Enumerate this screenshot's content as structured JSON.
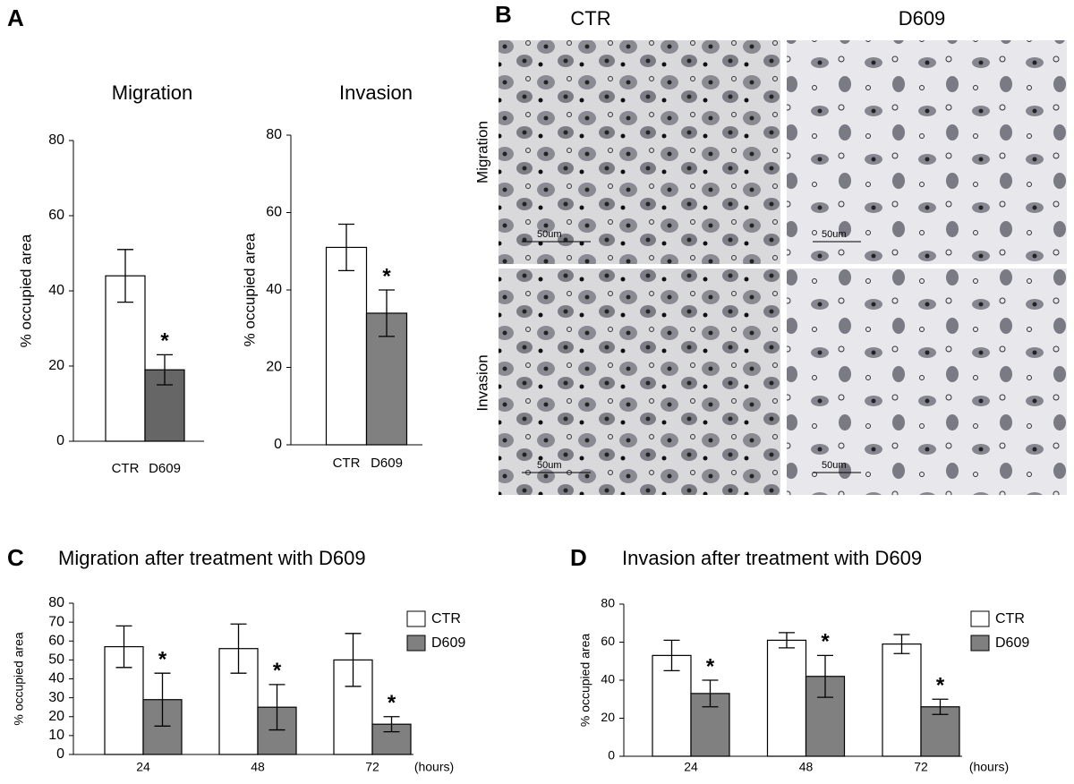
{
  "panel_letters": [
    "A",
    "B",
    "C",
    "D"
  ],
  "micrographs": {
    "columns": [
      "CTR",
      "D609"
    ],
    "rows": [
      "Migration",
      "Invasion"
    ],
    "scale_bar": "50um"
  },
  "chart_data": [
    {
      "type": "bar",
      "title": "Migration",
      "y_label": "% occupied area",
      "categories": [
        "CTR",
        "D609"
      ],
      "values": [
        44,
        19
      ],
      "errors": [
        7,
        4
      ],
      "colors": [
        "#ffffff",
        "#666666"
      ],
      "asterisks": [
        null,
        "*"
      ],
      "ylim": [
        0,
        80
      ],
      "yticks": [
        0,
        20,
        40,
        60,
        80
      ]
    },
    {
      "type": "bar",
      "title": "Invasion",
      "y_label": "% occupied area",
      "categories": [
        "CTR",
        "D609"
      ],
      "values": [
        51,
        34
      ],
      "errors": [
        6,
        6
      ],
      "colors": [
        "#ffffff",
        "#808080"
      ],
      "asterisks": [
        null,
        "*"
      ],
      "ylim": [
        0,
        80
      ],
      "yticks": [
        0,
        20,
        40,
        60,
        80
      ]
    },
    {
      "type": "bar",
      "title": "Migration after treatment with D609",
      "y_label": "% occupied area",
      "x_label": "(hours)",
      "categories": [
        "24",
        "48",
        "72"
      ],
      "legend": "upper right",
      "series": [
        {
          "name": "CTR",
          "color": "#ffffff",
          "values": [
            57,
            56,
            50
          ],
          "errors": [
            11,
            13,
            14
          ]
        },
        {
          "name": "D609",
          "color": "#808080",
          "values": [
            29,
            25,
            16
          ],
          "errors": [
            14,
            12,
            4
          ],
          "asterisks": [
            "*",
            "*",
            "*"
          ]
        }
      ],
      "ylim": [
        0,
        80
      ],
      "yticks": [
        0,
        10,
        20,
        30,
        40,
        50,
        60,
        70,
        80
      ]
    },
    {
      "type": "bar",
      "title": "Invasion after treatment with D609",
      "y_label": "% occupied area",
      "x_label": "(hours)",
      "categories": [
        "24",
        "48",
        "72"
      ],
      "legend": "upper right",
      "series": [
        {
          "name": "CTR",
          "color": "#ffffff",
          "values": [
            53,
            61,
            59
          ],
          "errors": [
            8,
            4,
            5
          ]
        },
        {
          "name": "D609",
          "color": "#808080",
          "values": [
            33,
            42,
            26
          ],
          "errors": [
            7,
            11,
            4
          ],
          "asterisks": [
            "*",
            "*",
            "*"
          ]
        }
      ],
      "ylim": [
        0,
        80
      ],
      "yticks": [
        0,
        20,
        40,
        60,
        80
      ]
    }
  ]
}
